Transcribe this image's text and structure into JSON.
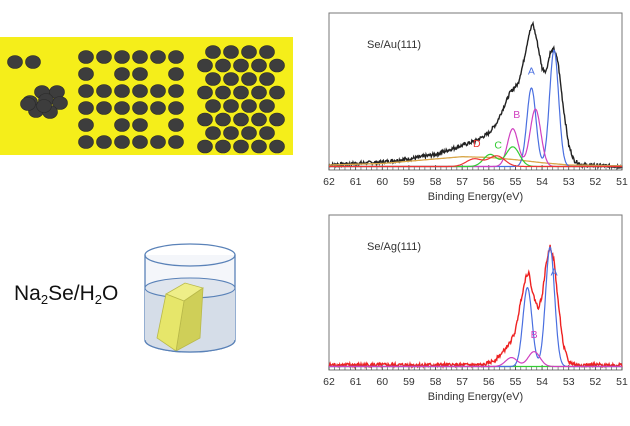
{
  "scheme": {
    "solution_label": {
      "prefix": "Na",
      "sub1": "2",
      "mid": "Se/H",
      "sub2": "2",
      "suffix": "O"
    },
    "colors": {
      "substrate": "#f5ee1a",
      "particle": "#3d3d3d",
      "liquid": "#d5dde8",
      "crystal": "#e6e66a",
      "beaker": "#5a82b8"
    }
  },
  "chart_data": [
    {
      "type": "line",
      "title": "Se/Au(111)",
      "xlabel": "Binding Energy(eV)",
      "ylabel": "",
      "xlim": [
        62,
        51
      ],
      "ylim": [
        0,
        1
      ],
      "xticks": [
        62,
        61,
        60,
        59,
        58,
        57,
        56,
        55,
        54,
        53,
        52,
        51
      ],
      "envelope": {
        "name": "data",
        "color": "#222222",
        "points": [
          [
            62,
            0.02
          ],
          [
            61,
            0.03
          ],
          [
            60,
            0.04
          ],
          [
            59,
            0.06
          ],
          [
            58,
            0.09
          ],
          [
            57.5,
            0.12
          ],
          [
            57,
            0.15
          ],
          [
            56.5,
            0.18
          ],
          [
            56,
            0.23
          ],
          [
            55.7,
            0.3
          ],
          [
            55.4,
            0.42
          ],
          [
            55.2,
            0.5
          ],
          [
            55.05,
            0.53
          ],
          [
            54.9,
            0.56
          ],
          [
            54.7,
            0.7
          ],
          [
            54.5,
            0.88
          ],
          [
            54.35,
            0.96
          ],
          [
            54.2,
            0.85
          ],
          [
            54.0,
            0.66
          ],
          [
            53.85,
            0.64
          ],
          [
            53.7,
            0.76
          ],
          [
            53.55,
            0.79
          ],
          [
            53.4,
            0.7
          ],
          [
            53.2,
            0.4
          ],
          [
            53.0,
            0.15
          ],
          [
            52.8,
            0.05
          ],
          [
            52.5,
            0.02
          ],
          [
            51,
            0.01
          ]
        ]
      },
      "background": {
        "name": "background",
        "color": "#d9a74a",
        "points": [
          [
            62,
            0.02
          ],
          [
            60,
            0.03
          ],
          [
            58,
            0.06
          ],
          [
            57,
            0.075
          ],
          [
            56,
            0.07
          ],
          [
            55,
            0.055
          ],
          [
            54,
            0.035
          ],
          [
            53,
            0.02
          ],
          [
            51,
            0.015
          ]
        ]
      },
      "components": [
        {
          "name": "A",
          "color": "#4a6fe0",
          "peaks": [
            [
              53.55,
              0.77,
              0.17
            ],
            [
              54.4,
              0.52,
              0.17
            ]
          ],
          "label_pos": [
            54.4,
            0.62
          ]
        },
        {
          "name": "B",
          "color": "#d040c0",
          "peaks": [
            [
              54.25,
              0.38,
              0.2
            ],
            [
              55.1,
              0.25,
              0.2
            ]
          ],
          "label_pos": [
            54.95,
            0.33
          ]
        },
        {
          "name": "C",
          "color": "#33cc33",
          "peaks": [
            [
              55.1,
              0.13,
              0.25
            ],
            [
              55.95,
              0.08,
              0.25
            ]
          ],
          "label_pos": [
            55.65,
            0.13
          ]
        },
        {
          "name": "D",
          "color": "#ee3333",
          "peaks": [
            [
              55.7,
              0.07,
              0.3
            ],
            [
              56.55,
              0.05,
              0.3
            ]
          ],
          "label_pos": [
            56.45,
            0.14
          ]
        }
      ]
    },
    {
      "type": "line",
      "title": "Se/Ag(111)",
      "xlabel": "Binding Energy(eV)",
      "ylabel": "",
      "xlim": [
        62,
        51
      ],
      "ylim": [
        0,
        1
      ],
      "xticks": [
        62,
        61,
        60,
        59,
        58,
        57,
        56,
        55,
        54,
        53,
        52,
        51
      ],
      "envelope": {
        "name": "data",
        "color": "#ee2222",
        "points": [
          [
            62,
            0.02
          ],
          [
            58,
            0.02
          ],
          [
            56.2,
            0.02
          ],
          [
            55.8,
            0.05
          ],
          [
            55.5,
            0.1
          ],
          [
            55.2,
            0.17
          ],
          [
            55.0,
            0.25
          ],
          [
            54.8,
            0.45
          ],
          [
            54.6,
            0.62
          ],
          [
            54.5,
            0.64
          ],
          [
            54.35,
            0.5
          ],
          [
            54.15,
            0.4
          ],
          [
            54.0,
            0.48
          ],
          [
            53.85,
            0.7
          ],
          [
            53.7,
            0.82
          ],
          [
            53.55,
            0.72
          ],
          [
            53.4,
            0.45
          ],
          [
            53.2,
            0.15
          ],
          [
            53.0,
            0.04
          ],
          [
            52.7,
            0.02
          ],
          [
            51,
            0.02
          ]
        ]
      },
      "background": {
        "name": "background",
        "color": "#33cc33",
        "points": [
          [
            62,
            0.01
          ],
          [
            51,
            0.01
          ]
        ]
      },
      "components": [
        {
          "name": "A",
          "color": "#4a6fe0",
          "peaks": [
            [
              53.7,
              0.8,
              0.17
            ],
            [
              54.55,
              0.53,
              0.17
            ]
          ],
          "label_pos": [
            53.55,
            0.62
          ]
        },
        {
          "name": "B",
          "color": "#d040c0",
          "peaks": [
            [
              54.3,
              0.1,
              0.22
            ],
            [
              55.15,
              0.06,
              0.22
            ]
          ],
          "label_pos": [
            54.3,
            0.2
          ]
        }
      ]
    }
  ]
}
